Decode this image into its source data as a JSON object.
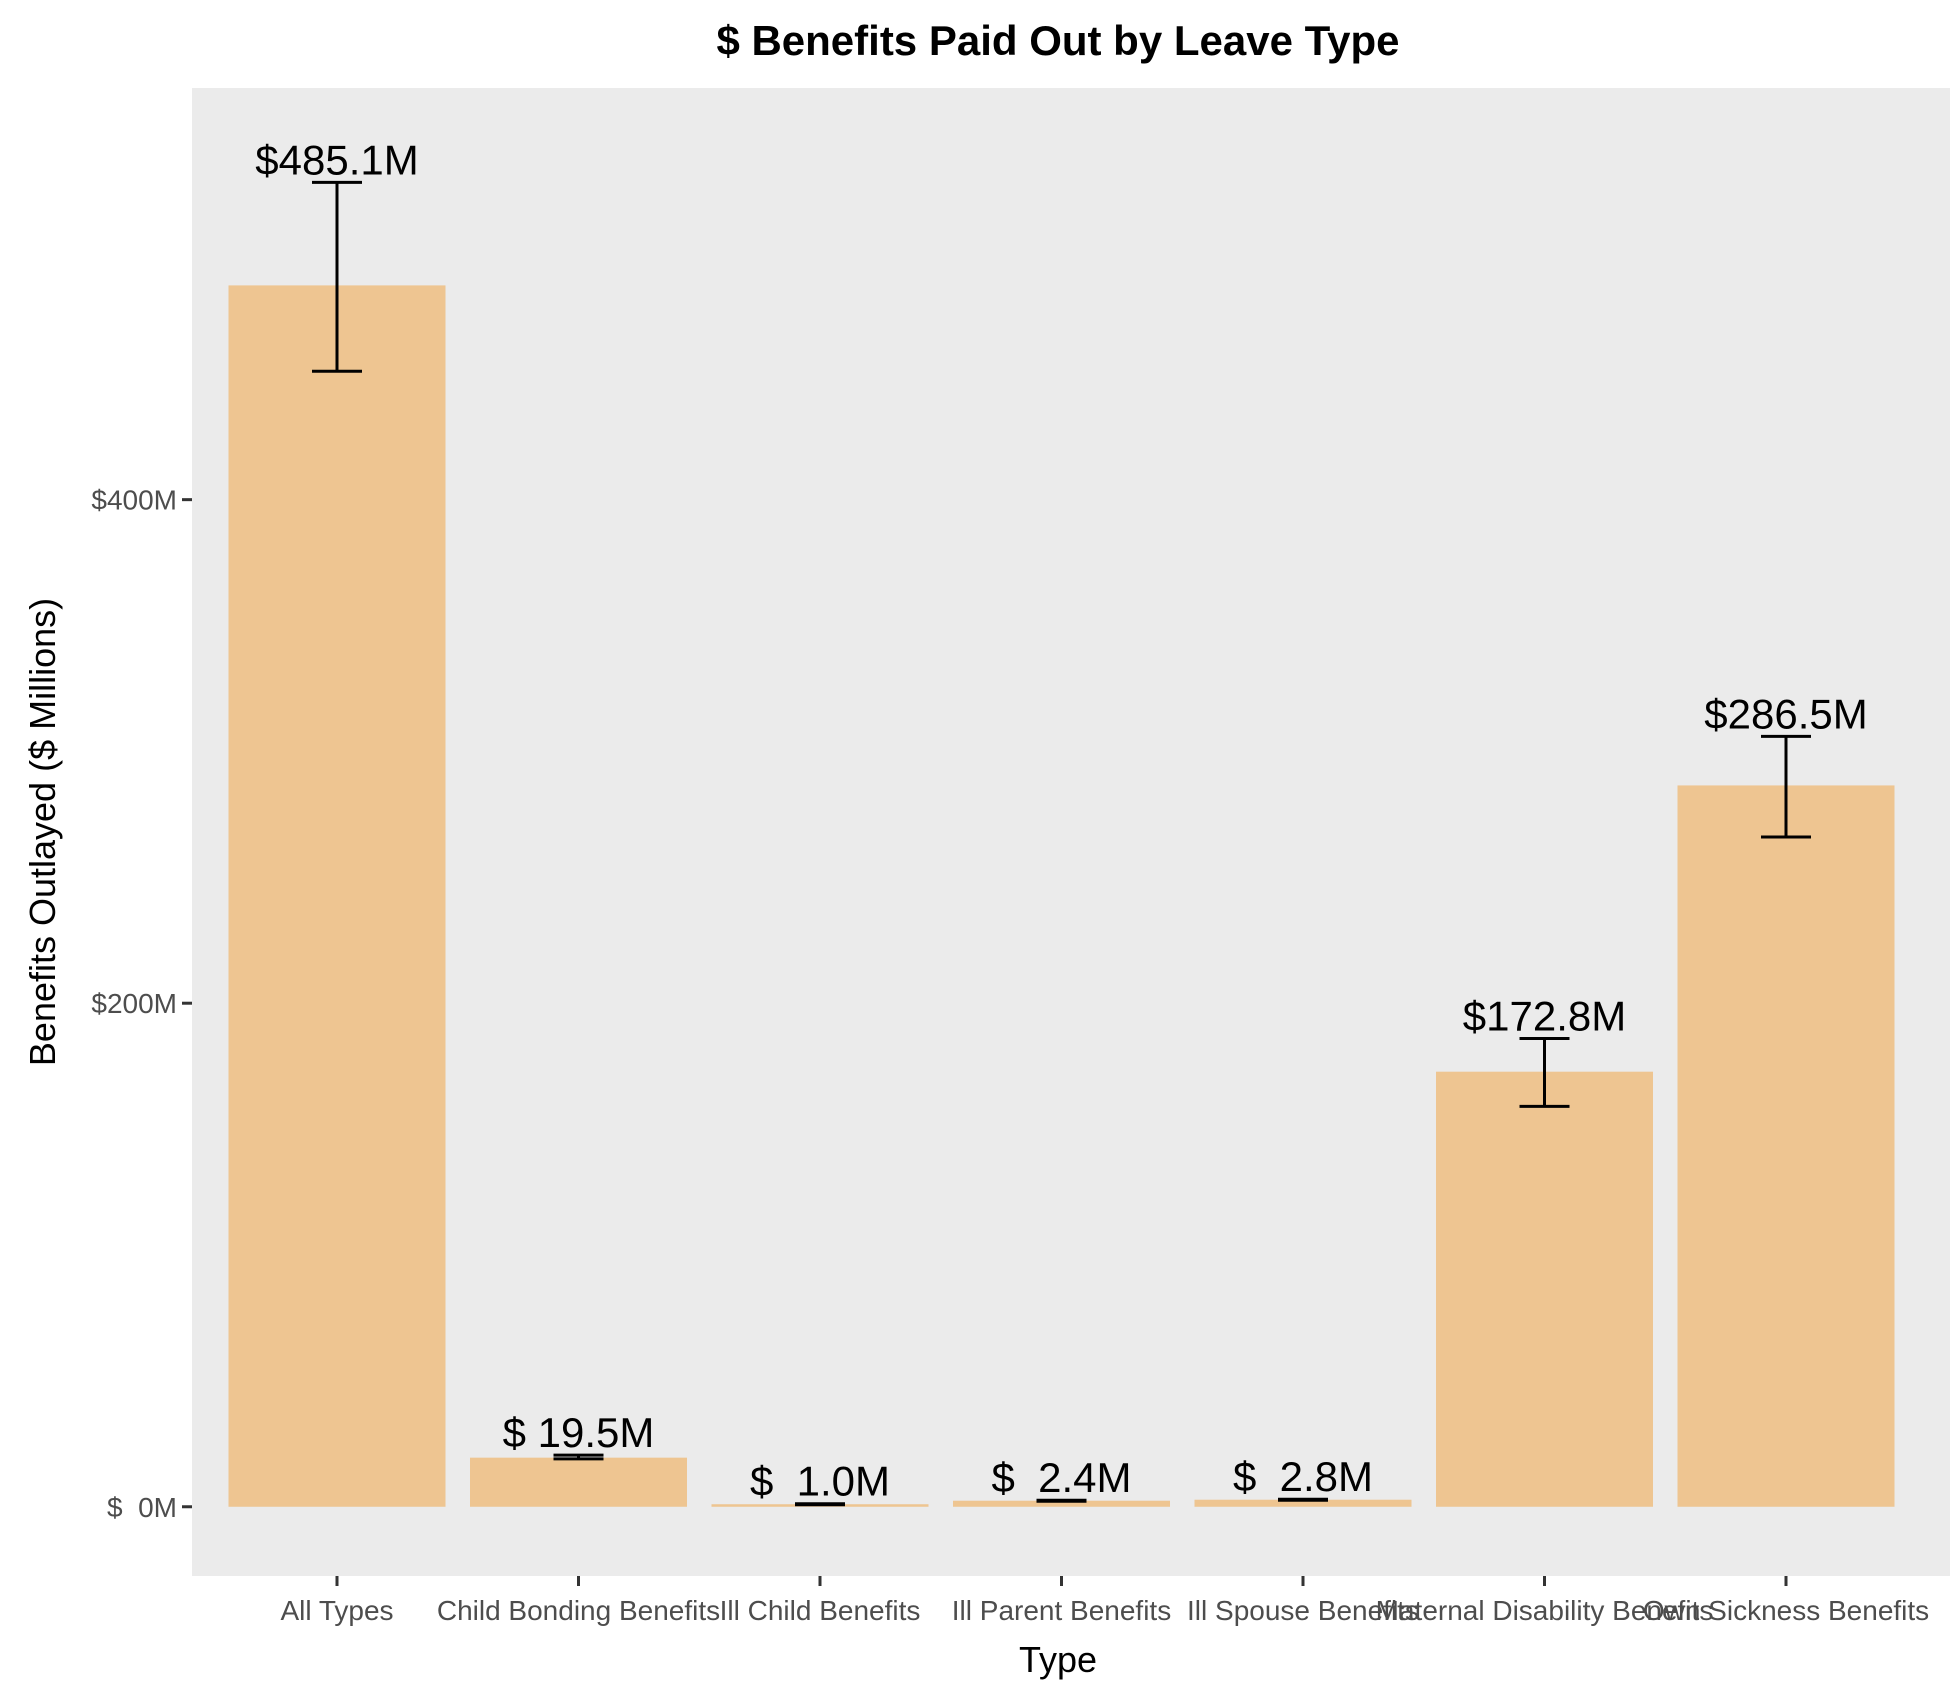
{
  "chart_data": {
    "type": "bar",
    "title": "$ Benefits Paid Out by Leave Type",
    "xlabel": "Type",
    "ylabel": "Benefits Outlayed ($ Millions)",
    "categories": [
      "All Types",
      "Child Bonding Benefits",
      "Ill Child Benefits",
      "Ill Parent Benefits",
      "Ill Spouse Benefits",
      "Maternal Disability Benefits",
      "Own Sickness Benefits"
    ],
    "values": [
      485.1,
      19.5,
      1.0,
      2.4,
      2.8,
      172.8,
      286.5
    ],
    "error_low": [
      451,
      19.0,
      0.8,
      2.2,
      2.6,
      159,
      266
    ],
    "error_high": [
      526,
      20.5,
      1.2,
      2.6,
      3.0,
      186,
      306
    ],
    "data_labels": [
      "$485.1M",
      "$ 19.5M",
      "$  1.0M",
      "$  2.4M",
      "$  2.8M",
      "$172.8M",
      "$286.5M"
    ],
    "yticks": [
      0,
      200,
      400
    ],
    "ytick_labels": [
      "$  0M",
      "$200M",
      "$400M"
    ],
    "ylim": [
      -27.5,
      563.5
    ],
    "grid": false,
    "colors": {
      "bar": "#EEC591",
      "panel": "#EBEBEB",
      "error_bar": "#000000"
    }
  }
}
